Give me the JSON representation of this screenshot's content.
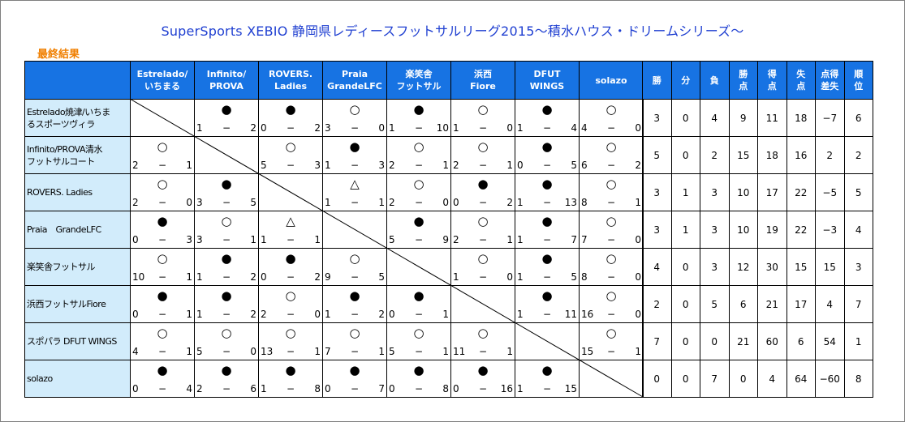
{
  "title": "SuperSports XEBIO 静岡県レディースフットサルリーグ2015～積水ハウス・ドリームシリーズ～",
  "subtitle": "最終結果",
  "teams_header": [
    [
      "Estrelado/",
      "いちまる"
    ],
    [
      "Infinito/",
      "PROVA"
    ],
    [
      "ROVERS.",
      "Ladies"
    ],
    [
      "Praia",
      "GrandeLFC"
    ],
    [
      "楽笑舎",
      "フットサル"
    ],
    [
      "浜西",
      "Fiore"
    ],
    [
      "DFUT",
      "WINGS"
    ],
    [
      "solazo",
      ""
    ]
  ],
  "stats_header": [
    [
      "勝",
      ""
    ],
    [
      "分",
      ""
    ],
    [
      "負",
      ""
    ],
    [
      "勝",
      "点"
    ],
    [
      "得",
      "点"
    ],
    [
      "失",
      "点"
    ],
    [
      "点得",
      "差失"
    ],
    [
      "順",
      "位"
    ]
  ],
  "rows": [
    {
      "team": [
        "Estrelado焼津/いちま",
        "るスポーツヴィラ"
      ],
      "results": [
        null,
        [
          "●",
          "1",
          "2"
        ],
        [
          "●",
          "0",
          "2"
        ],
        [
          "○",
          "3",
          "0"
        ],
        [
          "●",
          "1",
          "10"
        ],
        [
          "○",
          "1",
          "0"
        ],
        [
          "●",
          "1",
          "4"
        ],
        [
          "○",
          "4",
          "0"
        ]
      ],
      "stats": [
        "3",
        "0",
        "4",
        "9",
        "11",
        "18",
        "−7",
        "6"
      ]
    },
    {
      "team": [
        "Infinito/PROVA清水",
        "フットサルコート"
      ],
      "results": [
        [
          "○",
          "2",
          "1"
        ],
        null,
        [
          "○",
          "5",
          "3"
        ],
        [
          "●",
          "1",
          "3"
        ],
        [
          "○",
          "2",
          "1"
        ],
        [
          "○",
          "2",
          "1"
        ],
        [
          "●",
          "0",
          "5"
        ],
        [
          "○",
          "6",
          "2"
        ]
      ],
      "stats": [
        "5",
        "0",
        "2",
        "15",
        "18",
        "16",
        "2",
        "2"
      ]
    },
    {
      "team": [
        "ROVERS. Ladies",
        ""
      ],
      "results": [
        [
          "○",
          "2",
          "0"
        ],
        [
          "●",
          "3",
          "5"
        ],
        null,
        [
          "△",
          "1",
          "1"
        ],
        [
          "○",
          "2",
          "0"
        ],
        [
          "●",
          "0",
          "2"
        ],
        [
          "●",
          "1",
          "13"
        ],
        [
          "○",
          "8",
          "1"
        ]
      ],
      "stats": [
        "3",
        "1",
        "3",
        "10",
        "17",
        "22",
        "−5",
        "5"
      ]
    },
    {
      "team": [
        "Praia　GrandeLFC",
        ""
      ],
      "results": [
        [
          "●",
          "0",
          "3"
        ],
        [
          "○",
          "3",
          "1"
        ],
        [
          "△",
          "1",
          "1"
        ],
        null,
        [
          "●",
          "5",
          "9"
        ],
        [
          "○",
          "2",
          "1"
        ],
        [
          "●",
          "1",
          "7"
        ],
        [
          "○",
          "7",
          "0"
        ]
      ],
      "stats": [
        "3",
        "1",
        "3",
        "10",
        "19",
        "22",
        "−3",
        "4"
      ]
    },
    {
      "team": [
        "楽笑舎フットサル",
        ""
      ],
      "results": [
        [
          "○",
          "10",
          "1"
        ],
        [
          "●",
          "1",
          "2"
        ],
        [
          "●",
          "0",
          "2"
        ],
        [
          "○",
          "9",
          "5"
        ],
        null,
        [
          "○",
          "1",
          "0"
        ],
        [
          "●",
          "1",
          "5"
        ],
        [
          "○",
          "8",
          "0"
        ]
      ],
      "stats": [
        "4",
        "0",
        "3",
        "12",
        "30",
        "15",
        "15",
        "3"
      ]
    },
    {
      "team": [
        "浜西フットサルFiore",
        ""
      ],
      "results": [
        [
          "●",
          "0",
          "1"
        ],
        [
          "●",
          "1",
          "2"
        ],
        [
          "○",
          "2",
          "0"
        ],
        [
          "●",
          "1",
          "2"
        ],
        [
          "●",
          "0",
          "1"
        ],
        null,
        [
          "●",
          "1",
          "11"
        ],
        [
          "○",
          "16",
          "0"
        ]
      ],
      "stats": [
        "2",
        "0",
        "5",
        "6",
        "21",
        "17",
        "4",
        "7"
      ]
    },
    {
      "team": [
        "スポパラ DFUT WINGS",
        ""
      ],
      "results": [
        [
          "○",
          "4",
          "1"
        ],
        [
          "○",
          "5",
          "0"
        ],
        [
          "○",
          "13",
          "1"
        ],
        [
          "○",
          "7",
          "1"
        ],
        [
          "○",
          "5",
          "1"
        ],
        [
          "○",
          "11",
          "1"
        ],
        null,
        [
          "○",
          "15",
          "1"
        ]
      ],
      "stats": [
        "7",
        "0",
        "0",
        "21",
        "60",
        "6",
        "54",
        "1"
      ]
    },
    {
      "team": [
        "solazo",
        ""
      ],
      "results": [
        [
          "●",
          "0",
          "4"
        ],
        [
          "●",
          "2",
          "6"
        ],
        [
          "●",
          "1",
          "8"
        ],
        [
          "●",
          "0",
          "7"
        ],
        [
          "●",
          "0",
          "8"
        ],
        [
          "●",
          "0",
          "16"
        ],
        [
          "●",
          "1",
          "15"
        ],
        null
      ],
      "stats": [
        "0",
        "0",
        "7",
        "0",
        "4",
        "64",
        "−60",
        "8"
      ]
    }
  ],
  "colors": {
    "title": "#1f3fd1",
    "subtitle": "#f07f00",
    "header_bg": "#1773e3",
    "team_bg": "#d2ecfb"
  }
}
